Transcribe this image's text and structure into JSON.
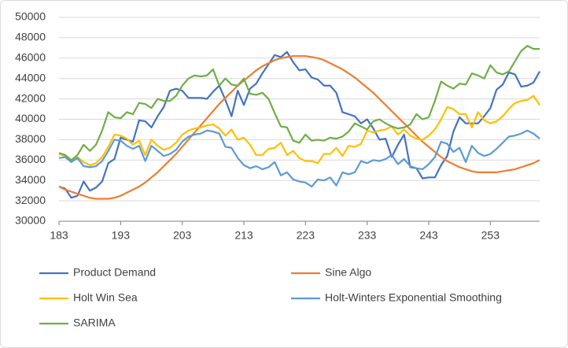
{
  "chart_data": {
    "type": "line",
    "x": [
      183,
      184,
      185,
      186,
      187,
      188,
      189,
      190,
      191,
      192,
      193,
      194,
      195,
      196,
      197,
      198,
      199,
      200,
      201,
      202,
      203,
      204,
      205,
      206,
      207,
      208,
      209,
      210,
      211,
      212,
      213,
      214,
      215,
      216,
      217,
      218,
      219,
      220,
      221,
      222,
      223,
      224,
      225,
      226,
      227,
      228,
      229,
      230,
      231,
      232,
      233,
      234,
      235,
      236,
      237,
      238,
      239,
      240,
      241,
      242,
      243,
      244,
      245,
      246,
      247,
      248,
      249,
      250,
      251,
      252,
      253,
      254,
      255,
      256,
      257,
      258,
      259,
      260,
      261
    ],
    "xlim": [
      183,
      261
    ],
    "xticks": [
      183,
      193,
      203,
      213,
      223,
      233,
      243,
      253
    ],
    "ylim": [
      30000,
      50000
    ],
    "yticks": [
      30000,
      32000,
      34000,
      36000,
      38000,
      40000,
      42000,
      44000,
      46000,
      48000,
      50000
    ],
    "grid": true,
    "legend": "bottom",
    "series": [
      {
        "name": "Product Demand",
        "color": "#4472c4",
        "values": [
          33400,
          33200,
          32300,
          32500,
          33900,
          33000,
          33300,
          33900,
          35700,
          36100,
          38200,
          38000,
          37800,
          39900,
          39800,
          39200,
          40300,
          41200,
          42800,
          43000,
          42800,
          42100,
          42100,
          42100,
          42000,
          42700,
          43300,
          41900,
          40300,
          42800,
          41400,
          43000,
          43500,
          44500,
          45400,
          46300,
          46100,
          46600,
          45600,
          44800,
          44900,
          44100,
          43900,
          43300,
          43300,
          42600,
          40700,
          40500,
          40300,
          39600,
          40000,
          39100,
          38000,
          38100,
          36300,
          37500,
          38500,
          35300,
          35200,
          34200,
          34300,
          34300,
          35500,
          36400,
          38800,
          40200,
          39600,
          39600,
          39600,
          40300,
          41100,
          42900,
          43400,
          44600,
          44400,
          43200,
          43300,
          43600,
          44700
        ]
      },
      {
        "name": "Sine Algo",
        "color": "#ed7d31",
        "values": [
          33400,
          33100,
          32900,
          32700,
          32500,
          32300,
          32200,
          32200,
          32200,
          32300,
          32500,
          32800,
          33100,
          33400,
          33800,
          34300,
          34800,
          35400,
          36000,
          36600,
          37300,
          38000,
          38700,
          39400,
          40100,
          40800,
          41500,
          42100,
          42700,
          43300,
          43800,
          44300,
          44800,
          45200,
          45500,
          45800,
          46000,
          46100,
          46200,
          46200,
          46200,
          46100,
          46000,
          45800,
          45500,
          45200,
          44900,
          44500,
          44100,
          43600,
          43100,
          42600,
          42000,
          41400,
          40800,
          40200,
          39600,
          39000,
          38400,
          37800,
          37300,
          36800,
          36300,
          35900,
          35600,
          35300,
          35100,
          34900,
          34800,
          34800,
          34800,
          34800,
          34900,
          35000,
          35100,
          35300,
          35500,
          35700,
          36000
        ]
      },
      {
        "name": "Holt Win Sea",
        "color": "#ffc000",
        "values": [
          36600,
          36400,
          36000,
          36300,
          35800,
          35500,
          35700,
          36300,
          37300,
          38500,
          38400,
          38100,
          37500,
          37900,
          36500,
          38000,
          37400,
          37000,
          37200,
          37700,
          38500,
          38900,
          39100,
          39200,
          39400,
          39500,
          39100,
          38400,
          39000,
          38000,
          38200,
          37500,
          36500,
          36500,
          37100,
          37200,
          37700,
          36500,
          36900,
          36200,
          35900,
          35900,
          35700,
          36600,
          36600,
          37200,
          36400,
          37400,
          37300,
          37600,
          38900,
          38700,
          38900,
          39000,
          39300,
          38500,
          39000,
          38400,
          38100,
          38000,
          38400,
          39000,
          40000,
          41200,
          41000,
          40500,
          40500,
          39200,
          40700,
          39900,
          39600,
          39800,
          40300,
          41000,
          41600,
          41800,
          41900,
          42300,
          41400
        ]
      },
      {
        "name": "Holt-Winters Exponential Smoothing",
        "color": "#5b9bd5",
        "values": [
          36200,
          36300,
          35800,
          36200,
          35400,
          35300,
          35400,
          35900,
          36900,
          38000,
          37900,
          37400,
          37100,
          37400,
          35900,
          37400,
          36900,
          36400,
          36600,
          37000,
          37800,
          38300,
          38500,
          38600,
          38900,
          38800,
          38600,
          37300,
          37200,
          36200,
          35500,
          35200,
          35400,
          35100,
          35300,
          35800,
          34500,
          34800,
          34100,
          33900,
          33800,
          33400,
          34100,
          34000,
          34300,
          33500,
          34800,
          34600,
          34800,
          35900,
          35700,
          36000,
          35900,
          36100,
          36500,
          35600,
          36100,
          35400,
          35200,
          35100,
          35600,
          36300,
          37800,
          37600,
          36800,
          37200,
          35800,
          37400,
          36700,
          36400,
          36600,
          37100,
          37700,
          38300,
          38400,
          38600,
          38900,
          38600,
          38100
        ]
      },
      {
        "name": "SARIMA",
        "color": "#70ad47",
        "values": [
          36700,
          36500,
          36000,
          36500,
          37500,
          36900,
          37500,
          38900,
          40700,
          40200,
          40100,
          40700,
          40500,
          41600,
          41500,
          41100,
          42000,
          41800,
          41800,
          42300,
          43300,
          44000,
          44300,
          44200,
          44300,
          44900,
          43300,
          44000,
          43400,
          43300,
          44000,
          42500,
          42400,
          42600,
          42000,
          40600,
          39300,
          39200,
          37900,
          37700,
          38500,
          37900,
          38000,
          37900,
          38200,
          38100,
          38300,
          38800,
          39600,
          39300,
          39000,
          39800,
          40000,
          39600,
          39300,
          39100,
          39200,
          39500,
          40500,
          40000,
          40200,
          41800,
          43700,
          43300,
          43000,
          43500,
          43400,
          44500,
          44300,
          44000,
          45300,
          44600,
          44400,
          44700,
          45700,
          46700,
          47200,
          46900,
          46900
        ]
      }
    ]
  }
}
